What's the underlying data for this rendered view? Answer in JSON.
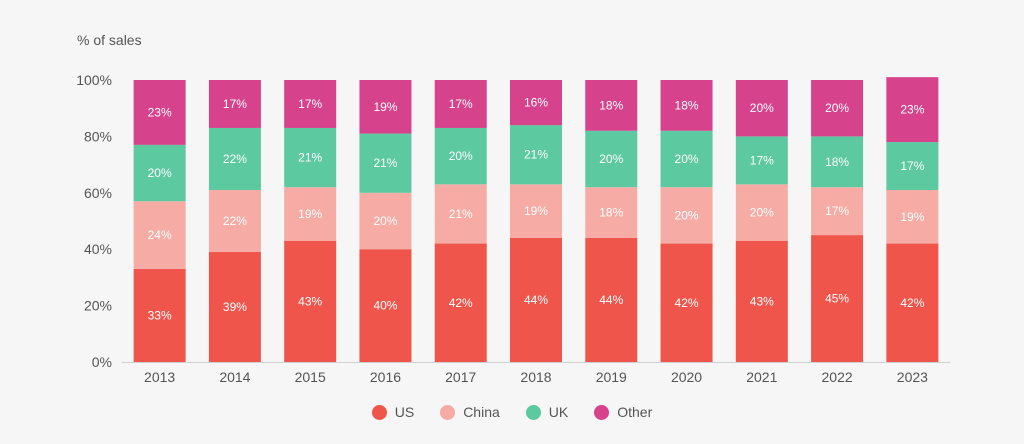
{
  "chart_data": {
    "type": "bar",
    "stacked": true,
    "ylabel": "% of sales",
    "ylim": [
      0,
      100
    ],
    "yticks": [
      "0%",
      "20%",
      "40%",
      "60%",
      "80%",
      "100%"
    ],
    "categories": [
      "2013",
      "2014",
      "2015",
      "2016",
      "2017",
      "2018",
      "2019",
      "2020",
      "2021",
      "2022",
      "2023"
    ],
    "series": [
      {
        "name": "US",
        "color": "#f0554c",
        "values": [
          33,
          39,
          43,
          40,
          42,
          44,
          44,
          42,
          43,
          45,
          42
        ]
      },
      {
        "name": "China",
        "color": "#f6aba4",
        "values": [
          24,
          22,
          19,
          20,
          21,
          19,
          18,
          20,
          20,
          17,
          19
        ]
      },
      {
        "name": "UK",
        "color": "#5cc9a1",
        "values": [
          20,
          22,
          21,
          21,
          20,
          21,
          20,
          20,
          17,
          18,
          17
        ]
      },
      {
        "name": "Other",
        "color": "#d6428c",
        "values": [
          23,
          17,
          17,
          19,
          17,
          16,
          18,
          18,
          20,
          20,
          23
        ]
      }
    ],
    "legend_position": "bottom-center",
    "grid": false
  }
}
